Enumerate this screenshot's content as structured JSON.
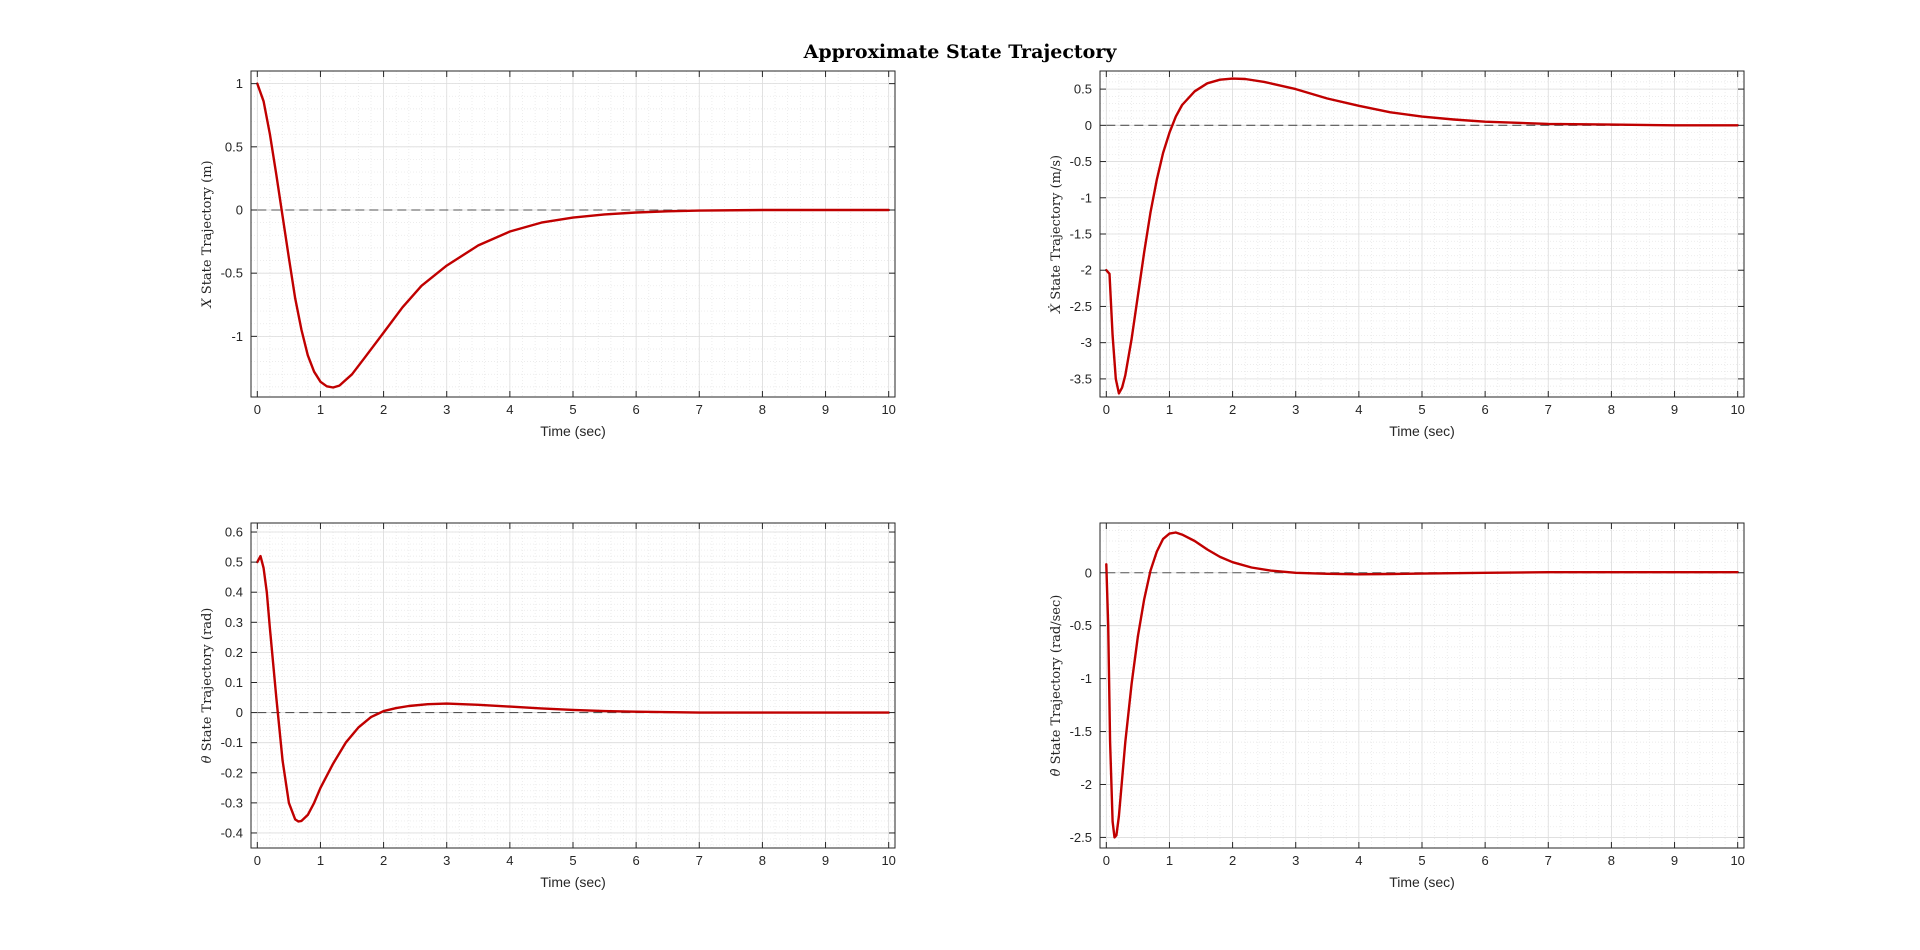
{
  "figure": {
    "title": "Approximate State Trajectory"
  },
  "chart_data": [
    {
      "type": "line",
      "xlabel": "Time (sec)",
      "ylabel_symbol": "X",
      "ylabel_text": "State Trajectory (m)",
      "xlim": [
        -0.1,
        10.1
      ],
      "ylim": [
        -1.48,
        1.1
      ],
      "xticks": [
        0,
        1,
        2,
        3,
        4,
        5,
        6,
        7,
        8,
        9,
        10
      ],
      "yticks": [
        1,
        0.5,
        0,
        -0.5,
        -1
      ],
      "ytick_labels": [
        "1",
        "0.5",
        "0",
        "-0.5",
        "-1"
      ],
      "grid": true,
      "reference_line_y": 0,
      "series": [
        {
          "color": "#c00000",
          "x": [
            0,
            0.1,
            0.2,
            0.3,
            0.4,
            0.5,
            0.6,
            0.7,
            0.8,
            0.9,
            1.0,
            1.1,
            1.2,
            1.3,
            1.5,
            1.7,
            2.0,
            2.3,
            2.6,
            3.0,
            3.5,
            4.0,
            4.5,
            5.0,
            5.5,
            6.0,
            6.5,
            7.0,
            8.0,
            9.0,
            10.0
          ],
          "y": [
            1.0,
            0.86,
            0.6,
            0.28,
            -0.05,
            -0.38,
            -0.7,
            -0.95,
            -1.15,
            -1.28,
            -1.36,
            -1.395,
            -1.405,
            -1.39,
            -1.3,
            -1.17,
            -0.97,
            -0.77,
            -0.6,
            -0.44,
            -0.28,
            -0.17,
            -0.1,
            -0.06,
            -0.035,
            -0.02,
            -0.01,
            -0.005,
            0,
            0,
            0
          ]
        }
      ]
    },
    {
      "type": "line",
      "xlabel": "Time (sec)",
      "ylabel_symbol": "Ẋ",
      "ylabel_text": "State Trajectory (m/s)",
      "xlim": [
        -0.1,
        10.1
      ],
      "ylim": [
        -3.75,
        0.75
      ],
      "xticks": [
        0,
        1,
        2,
        3,
        4,
        5,
        6,
        7,
        8,
        9,
        10
      ],
      "yticks": [
        0.5,
        0,
        -0.5,
        -1,
        -1.5,
        -2,
        -2.5,
        -3,
        -3.5
      ],
      "ytick_labels": [
        "0.5",
        "0",
        "-0.5",
        "-1",
        "-1.5",
        "-2",
        "-2.5",
        "-3",
        "-3.5"
      ],
      "grid": true,
      "reference_line_y": 0,
      "series": [
        {
          "color": "#c00000",
          "x": [
            0,
            0.05,
            0.1,
            0.15,
            0.2,
            0.25,
            0.3,
            0.4,
            0.5,
            0.6,
            0.7,
            0.8,
            0.9,
            1.0,
            1.1,
            1.2,
            1.4,
            1.6,
            1.8,
            2.0,
            2.2,
            2.5,
            3.0,
            3.5,
            4.0,
            4.5,
            5.0,
            5.5,
            6.0,
            7.0,
            8.0,
            9.0,
            10.0
          ],
          "y": [
            -2.0,
            -2.05,
            -2.9,
            -3.5,
            -3.7,
            -3.62,
            -3.45,
            -2.95,
            -2.35,
            -1.75,
            -1.2,
            -0.75,
            -0.38,
            -0.1,
            0.12,
            0.28,
            0.47,
            0.58,
            0.63,
            0.645,
            0.64,
            0.6,
            0.5,
            0.37,
            0.27,
            0.18,
            0.12,
            0.08,
            0.05,
            0.02,
            0.01,
            0,
            0
          ]
        }
      ]
    },
    {
      "type": "line",
      "xlabel": "Time (sec)",
      "ylabel_symbol": "θ",
      "ylabel_text": "State Trajectory (rad)",
      "xlim": [
        -0.1,
        10.1
      ],
      "ylim": [
        -0.45,
        0.63
      ],
      "xticks": [
        0,
        1,
        2,
        3,
        4,
        5,
        6,
        7,
        8,
        9,
        10
      ],
      "yticks": [
        0.6,
        0.5,
        0.4,
        0.3,
        0.2,
        0.1,
        0,
        -0.1,
        -0.2,
        -0.3,
        -0.4
      ],
      "ytick_labels": [
        "0.6",
        "0.5",
        "0.4",
        "0.3",
        "0.2",
        "0.1",
        "0",
        "-0.1",
        "-0.2",
        "-0.3",
        "-0.4"
      ],
      "grid": true,
      "reference_line_y": 0,
      "series": [
        {
          "color": "#c00000",
          "x": [
            0,
            0.05,
            0.1,
            0.15,
            0.2,
            0.3,
            0.4,
            0.5,
            0.6,
            0.65,
            0.7,
            0.8,
            0.9,
            1.0,
            1.2,
            1.4,
            1.6,
            1.8,
            2.0,
            2.2,
            2.4,
            2.7,
            3.0,
            3.5,
            4.0,
            4.5,
            5.0,
            5.5,
            6.0,
            7.0,
            8.0,
            10.0
          ],
          "y": [
            0.5,
            0.52,
            0.48,
            0.4,
            0.28,
            0.05,
            -0.16,
            -0.3,
            -0.355,
            -0.362,
            -0.36,
            -0.34,
            -0.3,
            -0.25,
            -0.17,
            -0.1,
            -0.05,
            -0.015,
            0.005,
            0.015,
            0.022,
            0.028,
            0.03,
            0.026,
            0.02,
            0.014,
            0.009,
            0.005,
            0.003,
            0,
            0,
            0
          ]
        }
      ]
    },
    {
      "type": "line",
      "xlabel": "Time (sec)",
      "ylabel_symbol": "θ̇",
      "ylabel_text": "State Trajectory (rad/sec)",
      "xlim": [
        -0.1,
        10.1
      ],
      "ylim": [
        -2.6,
        0.47
      ],
      "xticks": [
        0,
        1,
        2,
        3,
        4,
        5,
        6,
        7,
        8,
        9,
        10
      ],
      "yticks": [
        0,
        -0.5,
        -1,
        -1.5,
        -2,
        -2.5
      ],
      "ytick_labels": [
        "0",
        "-0.5",
        "-1",
        "-1.5",
        "-2",
        "-2.5"
      ],
      "grid": true,
      "reference_line_y": 0,
      "series": [
        {
          "color": "#c00000",
          "x": [
            0,
            0.03,
            0.06,
            0.1,
            0.13,
            0.16,
            0.2,
            0.25,
            0.3,
            0.4,
            0.5,
            0.6,
            0.7,
            0.8,
            0.9,
            1.0,
            1.1,
            1.2,
            1.4,
            1.6,
            1.8,
            2.0,
            2.3,
            2.6,
            3.0,
            3.5,
            4.0,
            4.5,
            5.0,
            6.0,
            7.0,
            8.0,
            10.0
          ],
          "y": [
            0.08,
            -0.5,
            -1.6,
            -2.35,
            -2.5,
            -2.48,
            -2.3,
            -1.95,
            -1.6,
            -1.05,
            -0.6,
            -0.25,
            0.02,
            0.2,
            0.32,
            0.37,
            0.38,
            0.36,
            0.3,
            0.22,
            0.15,
            0.1,
            0.05,
            0.02,
            0.0,
            -0.01,
            -0.015,
            -0.012,
            -0.008,
            0,
            0.005,
            0.005,
            0.005
          ]
        }
      ]
    }
  ]
}
